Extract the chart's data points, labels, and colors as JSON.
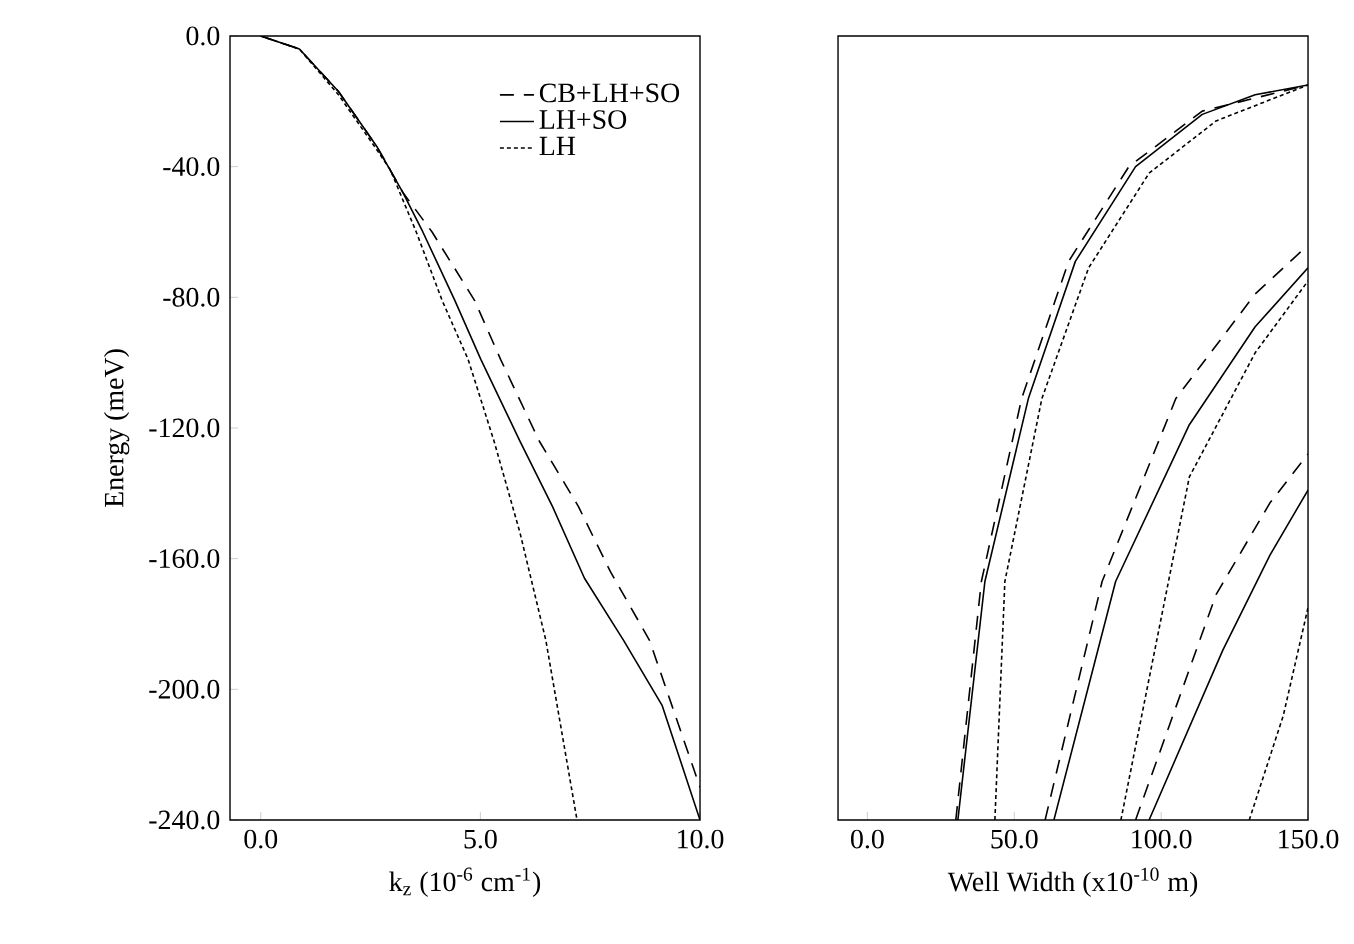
{
  "chart_data": [
    {
      "type": "line",
      "xlabel": "k$_{z}$ (10$^{-6}$ cm$^{-1}$)",
      "ylabel": "Energy (meV)",
      "xlim": [
        -0.7,
        10
      ],
      "ylim": [
        -240,
        0
      ],
      "xticks": [
        {
          "value": 0,
          "label": "0.0"
        },
        {
          "value": 5,
          "label": "5.0"
        },
        {
          "value": 10,
          "label": "10.0"
        }
      ],
      "yticks": [
        {
          "value": 0,
          "label": "0.0"
        },
        {
          "value": -40,
          "label": "-40.0"
        },
        {
          "value": -80,
          "label": "-80.0"
        },
        {
          "value": -120,
          "label": "-120.0"
        },
        {
          "value": -160,
          "label": "-160.0"
        },
        {
          "value": -200,
          "label": "-200.0"
        },
        {
          "value": -240,
          "label": "-240.0"
        }
      ],
      "legend": "top right",
      "marker": "none",
      "series": [
        {
          "name": "CB+LH+SO",
          "color": "#000000",
          "line_style": "dashed",
          "x": [
            0,
            0.88,
            1.77,
            2.65,
            3.24,
            3.9,
            4.87,
            5.46,
            6.34,
            7.23,
            7.96,
            8.85,
            10
          ],
          "values": [
            0,
            -4,
            -17,
            -34,
            -48,
            -60,
            -81,
            -99,
            -124,
            -144,
            -164,
            -185,
            -230
          ]
        },
        {
          "name": "LH+SO",
          "color": "#000000",
          "line_style": "solid",
          "x": [
            0,
            0.88,
            1.77,
            2.65,
            3.24,
            3.69,
            4.42,
            5.01,
            5.9,
            6.64,
            7.37,
            8.26,
            9.14,
            10
          ],
          "values": [
            0,
            -4,
            -17,
            -34,
            -48,
            -60,
            -81,
            -99,
            -124,
            -144,
            -166,
            -185,
            -205,
            -240
          ]
        },
        {
          "name": "LH",
          "color": "#000000",
          "line_style": "dotted",
          "x": [
            0,
            0.88,
            1.77,
            2.65,
            2.95,
            3.54,
            4.13,
            4.72,
            5.31,
            5.9,
            6.49,
            7.2
          ],
          "values": [
            0,
            -4,
            -18,
            -35,
            -41,
            -60,
            -81,
            -99,
            -124,
            -152,
            -185,
            -240
          ]
        }
      ]
    },
    {
      "type": "line",
      "xlabel": "Well Width (x10$^{-10}$ m)",
      "xlim": [
        -10,
        150
      ],
      "ylim": [
        -240,
        0
      ],
      "tick_labels": "x",
      "marker": "none",
      "xticks": [
        {
          "value": 0,
          "label": "0.0"
        },
        {
          "value": 50,
          "label": "50.0"
        },
        {
          "value": 100,
          "label": "100.0"
        },
        {
          "value": 150,
          "label": "150.0"
        }
      ],
      "series": [
        {
          "color": "#000000",
          "line_style": "solid",
          "x": [
            30.8,
            40,
            54.8,
            70.8,
            91.3,
            114,
            132,
            150
          ],
          "values": [
            -240,
            -167,
            -111,
            -69,
            -40,
            -24,
            -18,
            -15
          ]
        },
        {
          "color": "#000000",
          "line_style": "dashed",
          "x": [
            30.1,
            38.8,
            52.5,
            68.5,
            89,
            114,
            150
          ],
          "values": [
            -240,
            -167,
            -111,
            -69,
            -40,
            -23,
            -15
          ]
        },
        {
          "color": "#000000",
          "line_style": "dotted",
          "x": [
            43.4,
            46.8,
            59.4,
            75.3,
            95.9,
            118.7,
            150
          ],
          "values": [
            -240,
            -167,
            -111,
            -71,
            -42,
            -26,
            -15
          ]
        },
        {
          "color": "#000000",
          "line_style": "solid",
          "x": [
            63.5,
            84.5,
            109.6,
            132,
            150
          ],
          "values": [
            -240,
            -167,
            -119,
            -89,
            -71
          ]
        },
        {
          "color": "#000000",
          "line_style": "dashed",
          "x": [
            60.5,
            79.9,
            105,
            132,
            150
          ],
          "values": [
            -240,
            -167,
            -111,
            -79,
            -64
          ]
        },
        {
          "color": "#000000",
          "line_style": "dotted",
          "x": [
            86.3,
            109.6,
            132,
            150
          ],
          "values": [
            -240,
            -135,
            -97,
            -75
          ]
        },
        {
          "color": "#000000",
          "line_style": "solid",
          "x": [
            95.9,
            121,
            137,
            150
          ],
          "values": [
            -240,
            -188,
            -159,
            -139
          ]
        },
        {
          "color": "#000000",
          "line_style": "dashed",
          "x": [
            91.3,
            118.7,
            137,
            150
          ],
          "values": [
            -240,
            -171,
            -143,
            -128
          ]
        },
        {
          "color": "#000000",
          "line_style": "dotted",
          "x": [
            130,
            141.6,
            150
          ],
          "values": [
            -240,
            -208,
            -175
          ]
        }
      ]
    }
  ]
}
